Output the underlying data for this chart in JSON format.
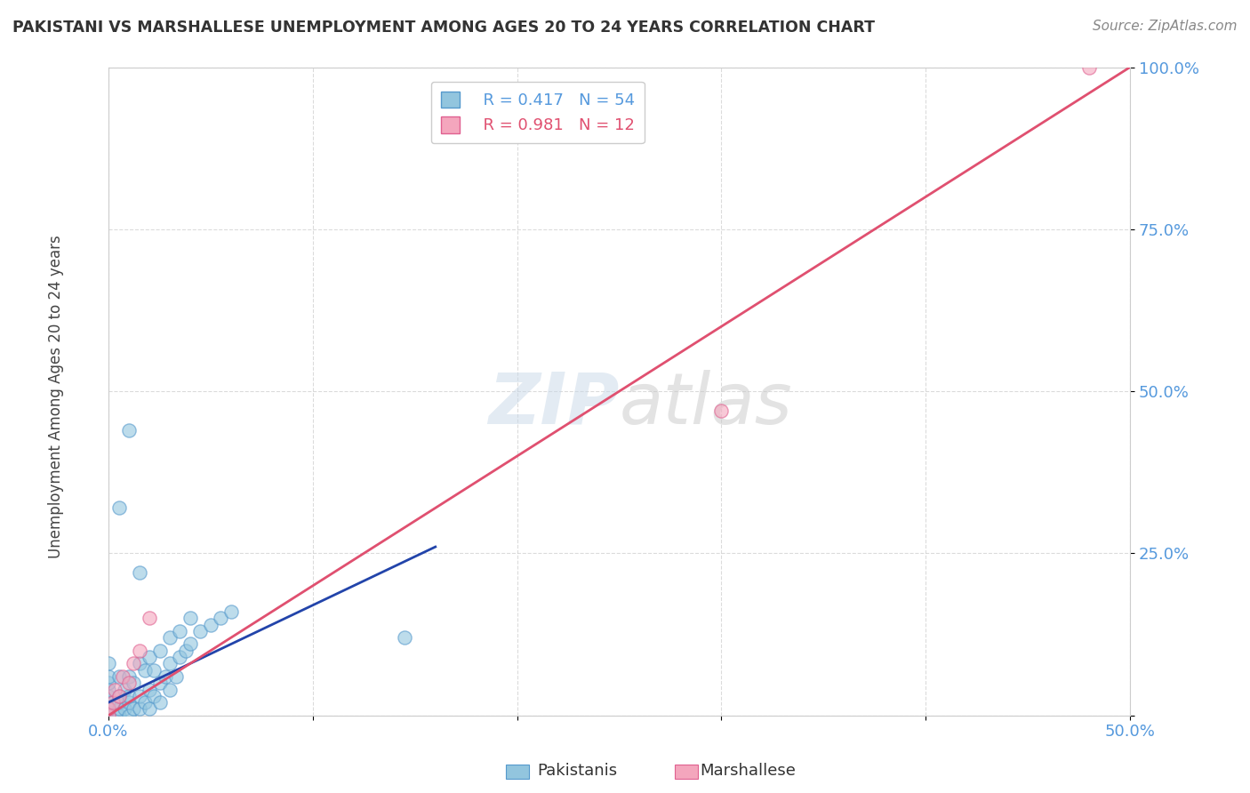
{
  "title": "PAKISTANI VS MARSHALLESE UNEMPLOYMENT AMONG AGES 20 TO 24 YEARS CORRELATION CHART",
  "source": "Source: ZipAtlas.com",
  "ylabel": "Unemployment Among Ages 20 to 24 years",
  "xlim": [
    0.0,
    0.5
  ],
  "ylim": [
    0.0,
    1.0
  ],
  "xticks": [
    0.0,
    0.1,
    0.2,
    0.3,
    0.4,
    0.5
  ],
  "yticks": [
    0.0,
    0.25,
    0.5,
    0.75,
    1.0
  ],
  "xticklabels": [
    "0.0%",
    "",
    "",
    "",
    "",
    "50.0%"
  ],
  "yticklabels": [
    "",
    "25.0%",
    "50.0%",
    "75.0%",
    "100.0%"
  ],
  "pakistani_R": 0.417,
  "pakistani_N": 54,
  "marshallese_R": 0.981,
  "marshallese_N": 12,
  "blue_color": "#92c5de",
  "pink_color": "#f4a6bd",
  "blue_edge_color": "#5599cc",
  "pink_edge_color": "#e06090",
  "blue_line_color": "#2244aa",
  "pink_line_color": "#e05070",
  "ref_line_color": "#aaaaaa",
  "background_color": "#ffffff",
  "tick_color": "#5599dd",
  "pakistani_x": [
    0.0,
    0.0,
    0.0,
    0.0,
    0.0,
    0.0,
    0.0,
    0.0,
    0.0,
    0.0,
    0.005,
    0.005,
    0.005,
    0.005,
    0.005,
    0.008,
    0.008,
    0.01,
    0.01,
    0.01,
    0.01,
    0.012,
    0.012,
    0.015,
    0.015,
    0.015,
    0.018,
    0.018,
    0.02,
    0.02,
    0.02,
    0.022,
    0.022,
    0.025,
    0.025,
    0.025,
    0.028,
    0.03,
    0.03,
    0.03,
    0.033,
    0.035,
    0.035,
    0.038,
    0.04,
    0.04,
    0.045,
    0.05,
    0.055,
    0.06,
    0.005,
    0.01,
    0.015,
    0.145
  ],
  "pakistani_y": [
    0.0,
    0.0,
    0.005,
    0.01,
    0.02,
    0.03,
    0.04,
    0.05,
    0.06,
    0.08,
    0.0,
    0.01,
    0.02,
    0.03,
    0.06,
    0.01,
    0.04,
    0.0,
    0.02,
    0.03,
    0.06,
    0.01,
    0.05,
    0.01,
    0.03,
    0.08,
    0.02,
    0.07,
    0.01,
    0.04,
    0.09,
    0.03,
    0.07,
    0.02,
    0.05,
    0.1,
    0.06,
    0.04,
    0.08,
    0.12,
    0.06,
    0.09,
    0.13,
    0.1,
    0.11,
    0.15,
    0.13,
    0.14,
    0.15,
    0.16,
    0.32,
    0.44,
    0.22,
    0.12
  ],
  "marshallese_x": [
    0.0,
    0.0,
    0.002,
    0.003,
    0.005,
    0.007,
    0.01,
    0.012,
    0.015,
    0.02,
    0.3,
    0.48
  ],
  "marshallese_y": [
    0.0,
    0.01,
    0.02,
    0.04,
    0.03,
    0.06,
    0.05,
    0.08,
    0.1,
    0.15,
    0.47,
    1.0
  ],
  "blue_line_x": [
    0.0,
    0.16
  ],
  "blue_line_y": [
    0.02,
    0.26
  ],
  "pink_line_x": [
    0.0,
    0.5
  ],
  "pink_line_y": [
    0.0,
    1.0
  ]
}
